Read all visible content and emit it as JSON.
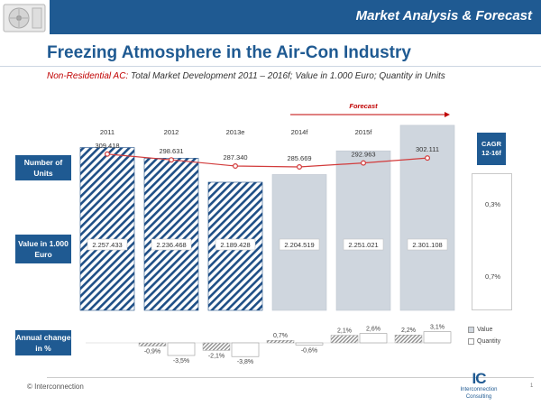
{
  "header": {
    "banner_title": "Market Analysis & Forecast",
    "title": "Freezing Atmosphere in the Air-Con Industry",
    "subtitle_red": "Non-Residential AC:",
    "subtitle_rest": " Total Market Development 2011 – 2016f; Value in 1.000 Euro; Quantity in Units"
  },
  "row_labels": {
    "units": "Number of Units",
    "value": "Value in 1.000 Euro",
    "change": "Annual change in %"
  },
  "cagr": {
    "header": "CAGR 12-16f",
    "units": "0,3%",
    "value": "0,7%"
  },
  "legend": {
    "value": "Value",
    "quantity": "Quantity"
  },
  "footer": {
    "copyright": "© Interconnection",
    "logo_mark": "IC",
    "logo_line1": "Interconnection",
    "logo_line2": "Consulting",
    "page": "1"
  },
  "colors": {
    "brand": "#1f5a92",
    "units_line": "#d23b3b",
    "forecast_arrow": "#c00000",
    "bar_hist": "#1f4f86",
    "bar_forecast": "#cfd6de"
  },
  "chart_data": {
    "type": "bar",
    "categories": [
      "2011",
      "2012",
      "2013e",
      "2014f",
      "2015f",
      "2016f"
    ],
    "forecast_label": "Forecast",
    "forecast_from_index": 3,
    "series": [
      {
        "name": "Value",
        "unit": "1.000 Euro",
        "values": [
          2257433,
          2236468,
          2189428,
          2204519,
          2251021,
          2301108
        ],
        "labels": [
          "2.257.433",
          "2.236.468",
          "2.189.428",
          "2.204.519",
          "2.251.021",
          "2.301.108"
        ]
      },
      {
        "name": "Number of Units",
        "type": "line",
        "values": [
          309418,
          298631,
          287340,
          285669,
          292963,
          302111
        ],
        "labels": [
          "309.418",
          "298.631",
          "287.340",
          "285.669",
          "292.963",
          "302.111"
        ]
      }
    ],
    "annual_change": {
      "value": [
        -0.9,
        -2.1,
        0.7,
        2.1,
        2.2
      ],
      "value_labels": [
        "-0,9%",
        "-2,1%",
        "0,7%",
        "2,1%",
        "2,2%"
      ],
      "quantity": [
        -3.5,
        -3.8,
        -0.6,
        2.6,
        3.1
      ],
      "quantity_labels": [
        "-3,5%",
        "-3,8%",
        "-0,6%",
        "2,6%",
        "3,1%"
      ]
    }
  }
}
